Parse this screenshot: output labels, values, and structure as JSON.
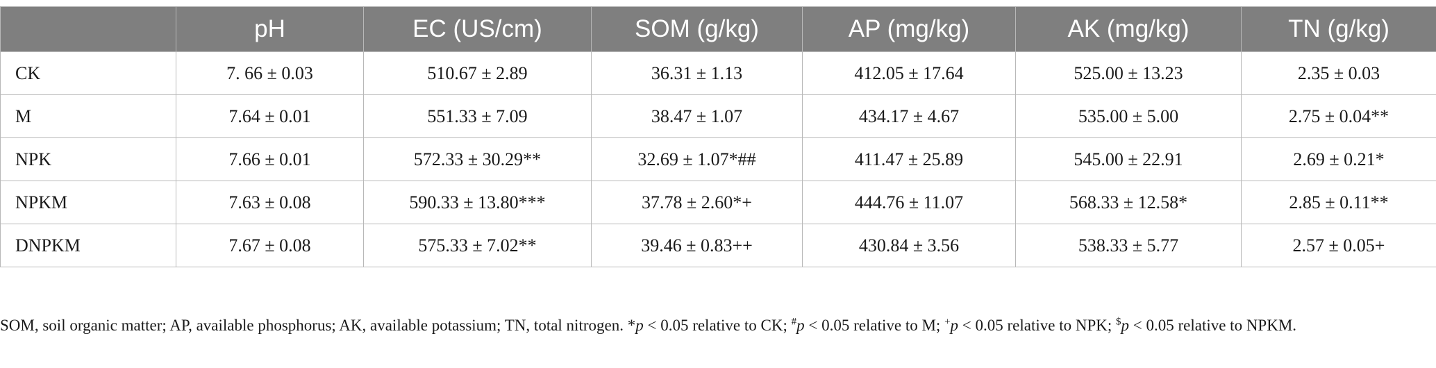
{
  "table": {
    "headers": [
      "",
      "pH",
      "EC (US/cm)",
      "SOM (g/kg)",
      "AP (mg/kg)",
      "AK (mg/kg)",
      "TN (g/kg)"
    ],
    "rows": [
      {
        "label": "CK",
        "values": [
          "7. 66 ± 0.03",
          "510.67 ± 2.89",
          "36.31 ± 1.13",
          "412.05 ± 17.64",
          "525.00 ± 13.23",
          "2.35 ± 0.03"
        ]
      },
      {
        "label": "M",
        "values": [
          "7.64 ± 0.01",
          "551.33 ± 7.09",
          "38.47 ± 1.07",
          "434.17 ± 4.67",
          "535.00 ± 5.00",
          "2.75 ± 0.04**"
        ]
      },
      {
        "label": "NPK",
        "values": [
          "7.66 ± 0.01",
          "572.33 ± 30.29**",
          "32.69 ± 1.07*##",
          "411.47 ± 25.89",
          "545.00 ± 22.91",
          "2.69 ± 0.21*"
        ]
      },
      {
        "label": "NPKM",
        "values": [
          "7.63 ± 0.08",
          "590.33 ± 13.80***",
          "37.78 ± 2.60*+",
          "444.76 ± 11.07",
          "568.33 ± 12.58*",
          "2.85 ± 0.11**"
        ]
      },
      {
        "label": "DNPKM",
        "values": [
          "7.67 ± 0.08",
          "575.33 ± 7.02**",
          "39.46 ± 0.83++",
          "430.84 ± 3.56",
          "538.33 ± 5.77",
          "2.57 ± 0.05+"
        ]
      }
    ]
  },
  "footnote": {
    "abbrev": "SOM, soil organic matter; AP, available phosphorus; AK, available potassium; TN, total nitrogen.",
    "sig_prefix_1": "*",
    "sig_var": "p",
    "sig_text_1": " < 0.05 relative to CK; ",
    "sig_sym_2": "#",
    "sig_text_2": " < 0.05 relative to M; ",
    "sig_sym_3": "+",
    "sig_text_3": " < 0.05 relative to NPK; ",
    "sig_sym_4": "$",
    "sig_text_4": " < 0.05 relative to NPKM."
  }
}
